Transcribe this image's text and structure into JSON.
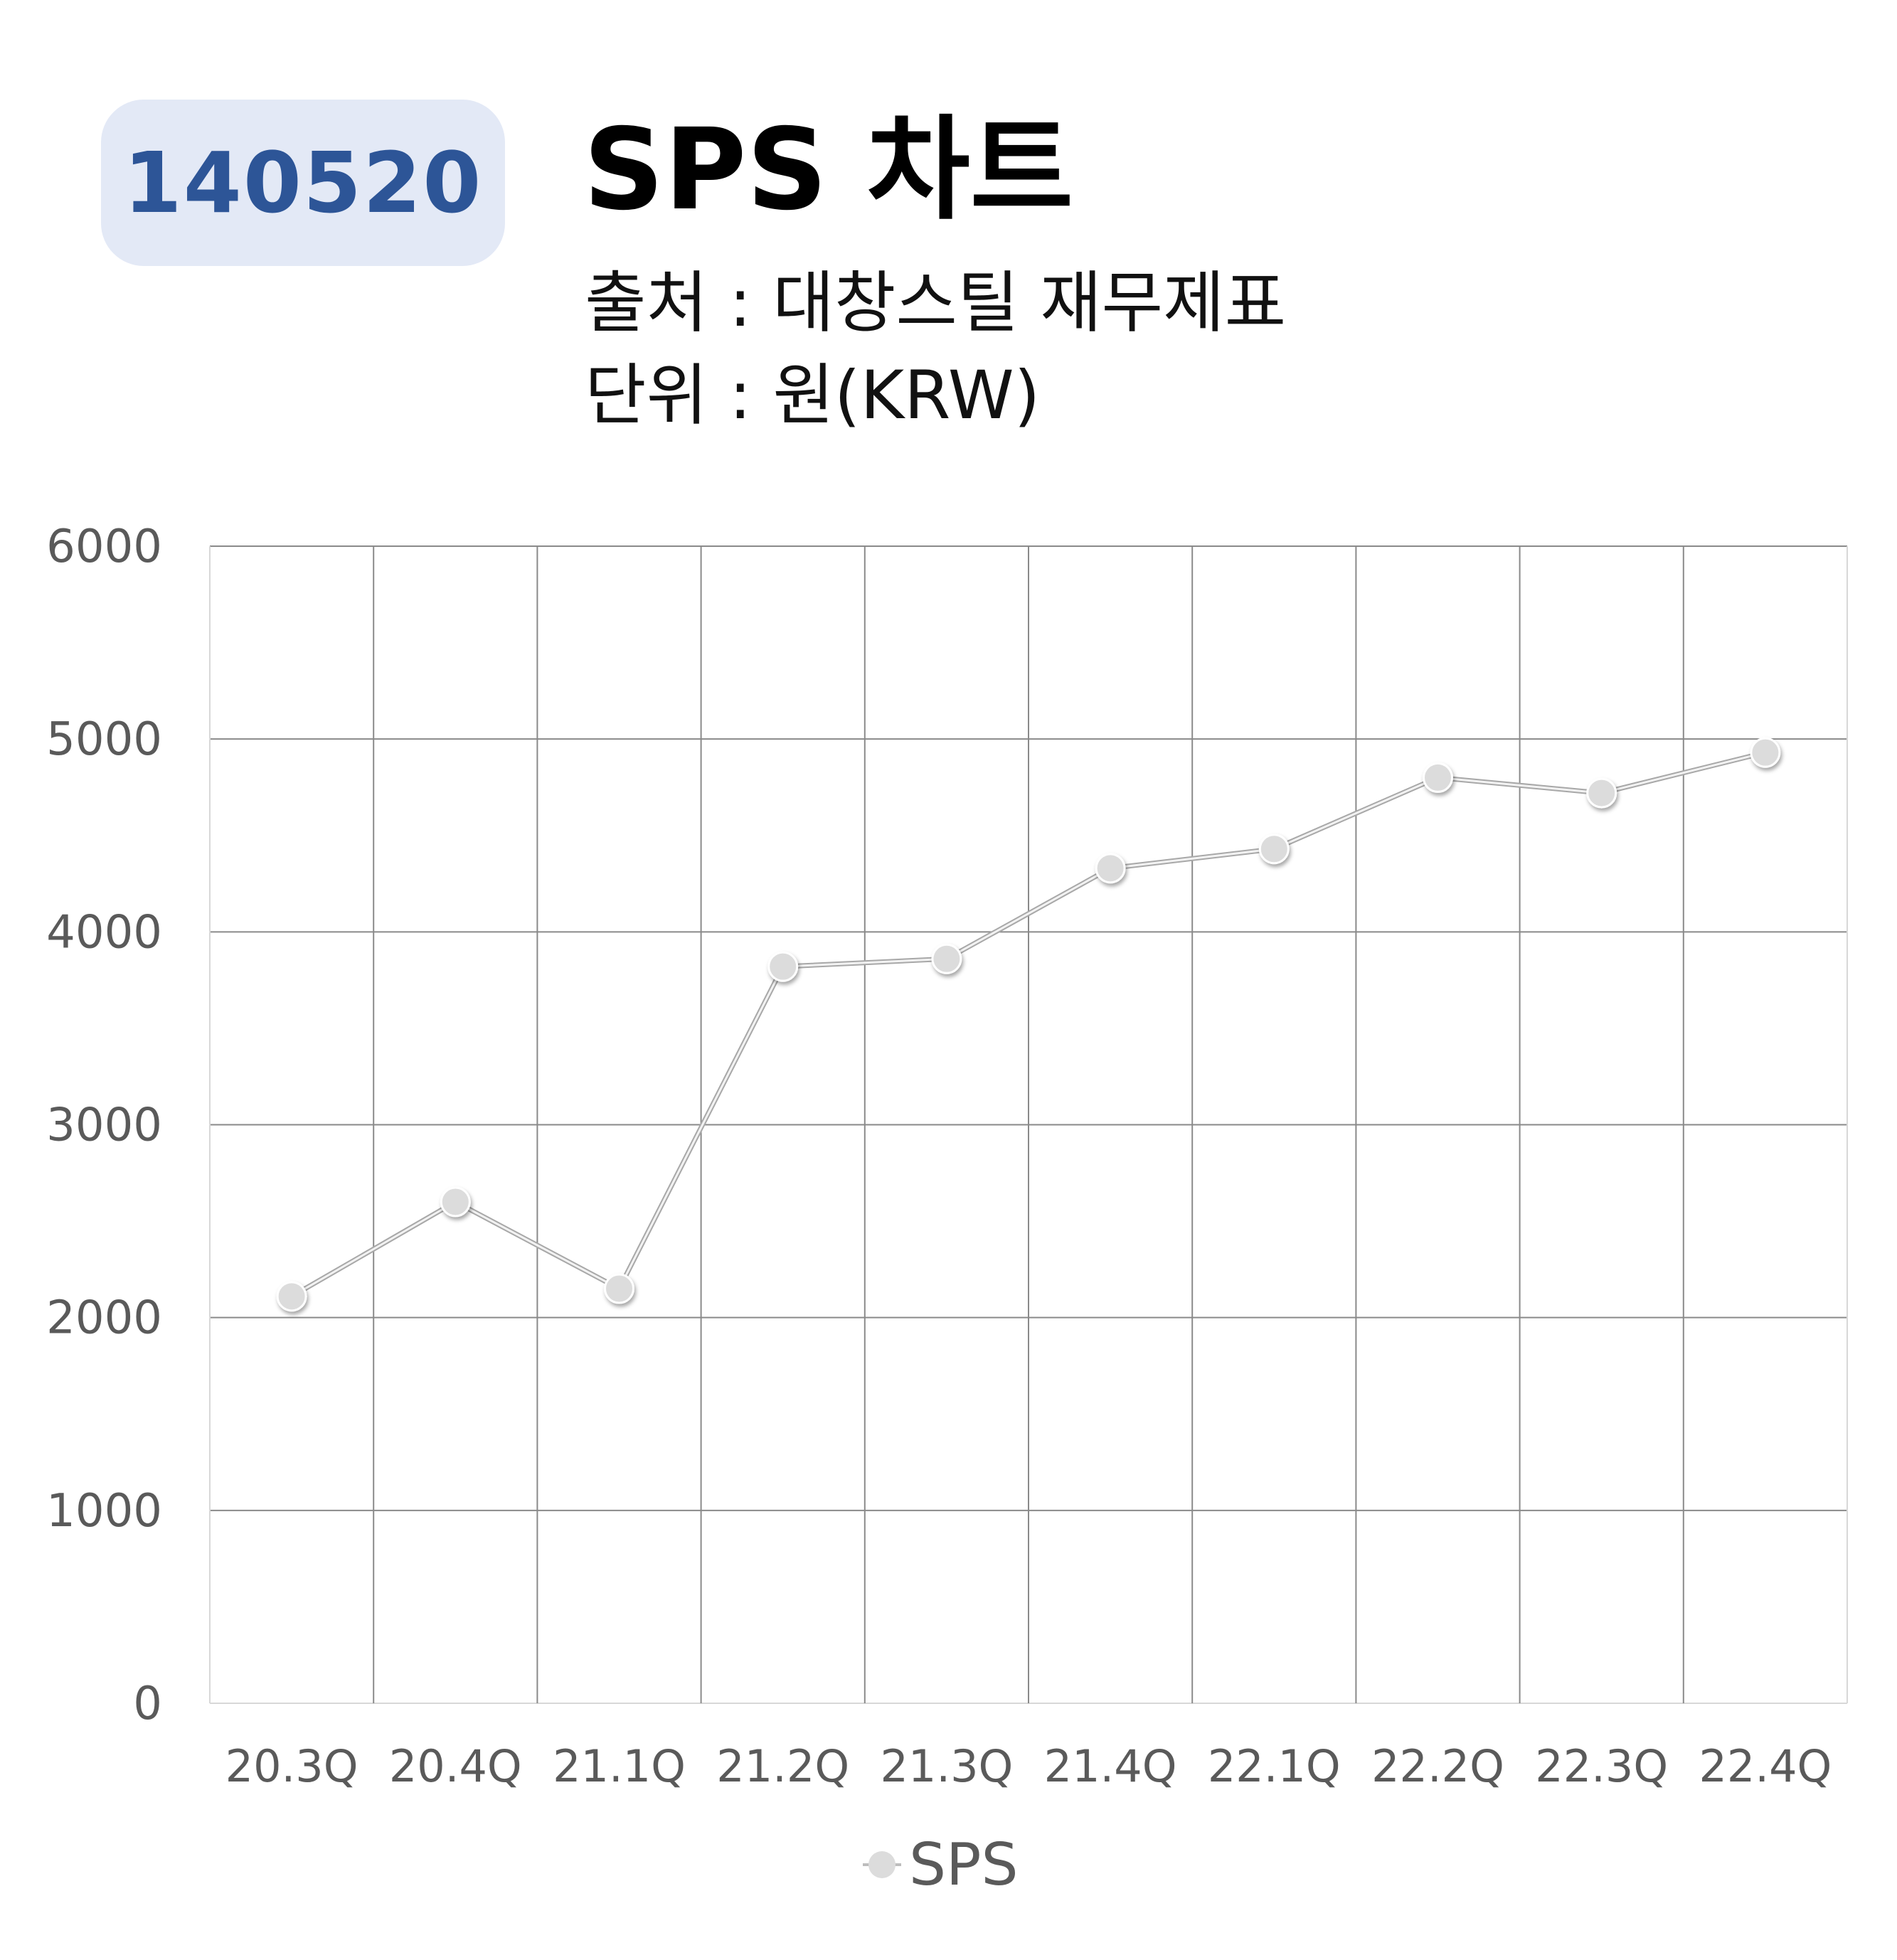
{
  "header": {
    "code": "140520",
    "title": "SPS 차트",
    "source": "출처 : 대창스틸 재무제표",
    "unit": "단위 : 원(KRW)"
  },
  "colors": {
    "badge_bg": "#e3e9f6",
    "badge_text": "#2d5597",
    "series": "#c9c9c9",
    "marker": "#dcdcdc",
    "grid": "#8a8a8a",
    "tick_text": "#5a5a5a"
  },
  "chart_data": {
    "type": "line",
    "title": "SPS 차트",
    "categories": [
      "20.3Q",
      "20.4Q",
      "21.1Q",
      "21.2Q",
      "21.3Q",
      "21.4Q",
      "22.1Q",
      "22.2Q",
      "22.3Q",
      "22.4Q"
    ],
    "series": [
      {
        "name": "SPS",
        "values": [
          2110,
          2600,
          2150,
          3820,
          3860,
          4330,
          4430,
          4800,
          4720,
          4930
        ]
      }
    ],
    "y_ticks": [
      0,
      1000,
      2000,
      3000,
      4000,
      5000,
      6000
    ],
    "ylim": [
      0,
      6000
    ],
    "grid": true,
    "legend": "bottom-center"
  }
}
